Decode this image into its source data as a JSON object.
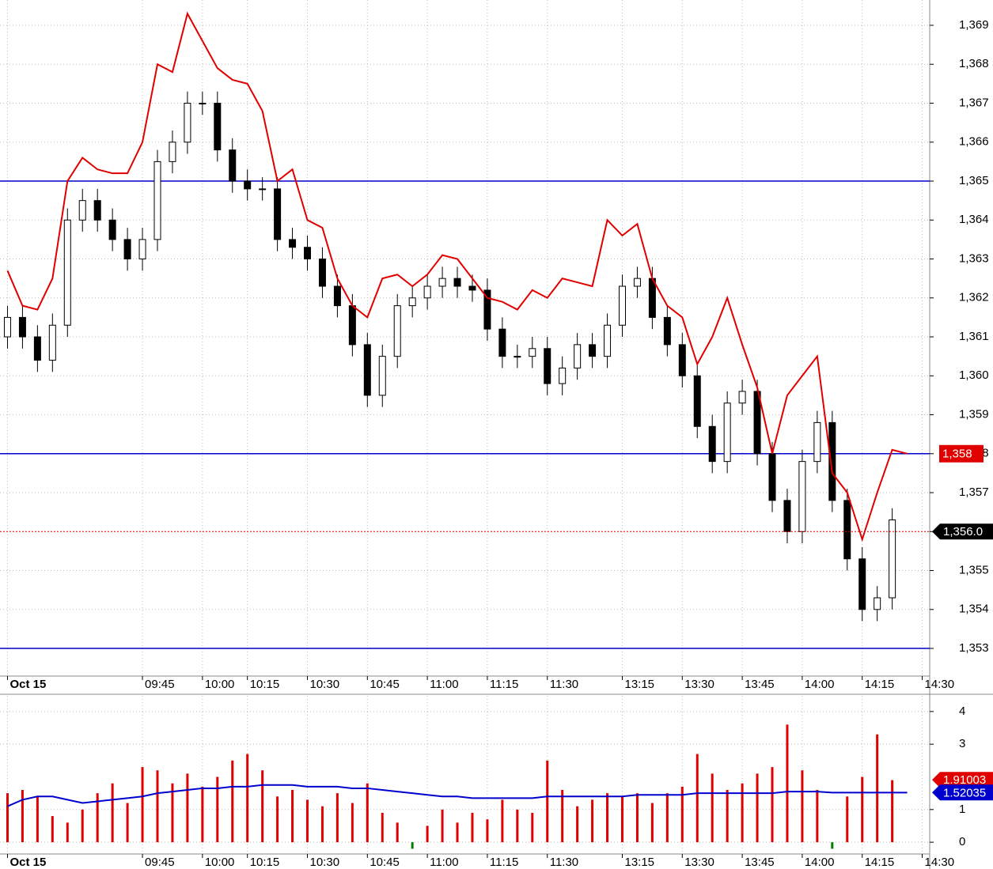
{
  "chart_data": [
    {
      "type": "candlestick",
      "categories": [
        "Oct 15",
        null,
        null,
        null,
        null,
        null,
        null,
        null,
        null,
        "09:45",
        null,
        null,
        null,
        "10:00",
        null,
        null,
        "10:15",
        null,
        null,
        null,
        "10:30",
        null,
        null,
        null,
        "10:45",
        null,
        null,
        null,
        "11:00",
        null,
        null,
        null,
        "11:15",
        null,
        null,
        null,
        "11:30",
        null,
        null,
        null,
        null,
        "13:15",
        null,
        null,
        null,
        "13:30",
        null,
        null,
        null,
        "13:45",
        null,
        null,
        null,
        "14:00",
        null,
        null,
        null,
        "14:15",
        null,
        null,
        null,
        "14:30"
      ],
      "open": [
        1361.0,
        1361.5,
        1361.0,
        1360.4,
        1361.3,
        1364.0,
        1364.5,
        1364.0,
        1363.5,
        1363.0,
        1363.5,
        1365.5,
        1366.0,
        1367.0,
        1367.0,
        1365.8,
        1365.0,
        1364.8,
        1364.8,
        1363.5,
        1363.3,
        1363.0,
        1362.3,
        1361.8,
        1360.8,
        1359.5,
        1360.5,
        1361.8,
        1362.0,
        1362.3,
        1362.5,
        1362.3,
        1362.2,
        1361.2,
        1360.5,
        1360.5,
        1360.7,
        1359.8,
        1360.2,
        1360.8,
        1360.5,
        1361.3,
        1362.3,
        1362.5,
        1361.5,
        1360.8,
        1360.0,
        1358.7,
        1357.8,
        1359.3,
        1359.6,
        1358.0,
        1356.8,
        1356.0,
        1357.8,
        1358.8,
        1356.8,
        1355.3,
        1354.0,
        1354.3,
        null,
        null
      ],
      "high": [
        1361.8,
        1361.8,
        1361.3,
        1361.6,
        1364.3,
        1364.8,
        1364.8,
        1364.3,
        1363.8,
        1363.8,
        1365.8,
        1366.3,
        1367.3,
        1367.3,
        1367.3,
        1366.1,
        1365.3,
        1365.1,
        1365.1,
        1363.8,
        1363.6,
        1363.3,
        1362.6,
        1362.1,
        1361.1,
        1360.8,
        1362.1,
        1362.3,
        1362.6,
        1362.8,
        1362.8,
        1362.6,
        1362.5,
        1361.5,
        1360.8,
        1361.0,
        1361.0,
        1360.5,
        1361.1,
        1361.1,
        1361.6,
        1362.6,
        1362.8,
        1362.8,
        1361.8,
        1361.1,
        1360.3,
        1359.0,
        1359.6,
        1359.9,
        1359.9,
        1358.3,
        1357.1,
        1358.1,
        1359.1,
        1359.1,
        1357.1,
        1355.6,
        1354.6,
        1356.6,
        null,
        null
      ],
      "low": [
        1360.7,
        1360.7,
        1360.1,
        1360.1,
        1361.0,
        1363.7,
        1363.7,
        1363.2,
        1362.7,
        1362.7,
        1363.2,
        1365.2,
        1365.7,
        1366.7,
        1365.5,
        1364.7,
        1364.5,
        1364.5,
        1363.2,
        1363.0,
        1362.7,
        1362.0,
        1361.5,
        1360.5,
        1359.2,
        1359.2,
        1360.2,
        1361.5,
        1361.7,
        1362.0,
        1362.0,
        1361.9,
        1360.9,
        1360.2,
        1360.2,
        1360.2,
        1359.5,
        1359.5,
        1359.9,
        1360.2,
        1360.2,
        1361.0,
        1362.0,
        1361.2,
        1360.5,
        1359.7,
        1358.4,
        1357.5,
        1357.5,
        1359.0,
        1357.7,
        1356.5,
        1355.7,
        1355.7,
        1357.5,
        1356.5,
        1355.0,
        1353.7,
        1353.7,
        1354.0,
        null,
        null
      ],
      "close": [
        1361.5,
        1361.0,
        1360.4,
        1361.3,
        1364.0,
        1364.5,
        1364.0,
        1363.5,
        1363.0,
        1363.5,
        1365.5,
        1366.0,
        1367.0,
        1367.0,
        1365.8,
        1365.0,
        1364.8,
        1364.8,
        1363.5,
        1363.3,
        1363.0,
        1362.3,
        1361.8,
        1360.8,
        1359.5,
        1360.5,
        1361.8,
        1362.0,
        1362.3,
        1362.5,
        1362.3,
        1362.2,
        1361.2,
        1360.5,
        1360.5,
        1360.7,
        1359.8,
        1360.2,
        1360.8,
        1360.5,
        1361.3,
        1362.3,
        1362.5,
        1361.5,
        1360.8,
        1360.0,
        1358.7,
        1357.8,
        1359.3,
        1359.6,
        1358.0,
        1356.8,
        1356.0,
        1357.8,
        1358.8,
        1356.8,
        1355.3,
        1354.0,
        1354.3,
        1356.3,
        null,
        null
      ],
      "line": {
        "color": "#e00000",
        "values": [
          1362.7,
          1361.8,
          1361.7,
          1362.5,
          1365.0,
          1365.6,
          1365.3,
          1365.2,
          1365.2,
          1366.0,
          1368.0,
          1367.8,
          1369.3,
          1368.6,
          1367.9,
          1367.6,
          1367.5,
          1366.8,
          1365.0,
          1365.3,
          1364.0,
          1363.8,
          1362.5,
          1361.8,
          1361.5,
          1362.5,
          1362.6,
          1362.3,
          1362.6,
          1363.1,
          1363.0,
          1362.5,
          1362.0,
          1361.9,
          1361.7,
          1362.2,
          1362.0,
          1362.5,
          1362.4,
          1362.3,
          1364.0,
          1363.6,
          1363.9,
          1362.5,
          1361.8,
          1361.5,
          1360.3,
          1361.0,
          1362.0,
          1360.8,
          1359.7,
          1358.0,
          1359.5,
          1360.0,
          1360.5,
          1357.5,
          1357.0,
          1355.8,
          1357.0,
          1358.1,
          1358.0,
          null
        ]
      },
      "hlines": {
        "color": "#0000cc",
        "values": [
          1365,
          1358,
          1353
        ]
      },
      "tags": [
        {
          "value": 1358,
          "label": "1,358",
          "color": "#e00000"
        },
        {
          "value": 1356,
          "label": "1,356.0",
          "color": "#000000"
        }
      ],
      "ylim": [
        1352.29,
        1369.65
      ],
      "yticks": [
        {
          "value": 1353,
          "label": "1,353"
        },
        {
          "value": 1354,
          "label": "1,354"
        },
        {
          "value": 1355,
          "label": "1,355"
        },
        {
          "value": 1356,
          "label": "1,356"
        },
        {
          "value": 1357,
          "label": "1,357"
        },
        {
          "value": 1358,
          "label": "1,358"
        },
        {
          "value": 1359,
          "label": "1,359"
        },
        {
          "value": 1360,
          "label": "1,360"
        },
        {
          "value": 1361,
          "label": "1,361"
        },
        {
          "value": 1362,
          "label": "1,362"
        },
        {
          "value": 1363,
          "label": "1,363"
        },
        {
          "value": 1364,
          "label": "1,364"
        },
        {
          "value": 1365,
          "label": "1,365"
        },
        {
          "value": 1366,
          "label": "1,366"
        },
        {
          "value": 1367,
          "label": "1,367"
        },
        {
          "value": 1368,
          "label": "1,368"
        },
        {
          "value": 1369,
          "label": "1,369"
        }
      ],
      "grid": true
    },
    {
      "type": "bar",
      "categories": [
        "Oct 15",
        null,
        null,
        null,
        null,
        null,
        null,
        null,
        null,
        "09:45",
        null,
        null,
        null,
        "10:00",
        null,
        null,
        "10:15",
        null,
        null,
        null,
        "10:30",
        null,
        null,
        null,
        "10:45",
        null,
        null,
        null,
        "11:00",
        null,
        null,
        null,
        "11:15",
        null,
        null,
        null,
        "11:30",
        null,
        null,
        null,
        null,
        "13:15",
        null,
        null,
        null,
        "13:30",
        null,
        null,
        null,
        "13:45",
        null,
        null,
        null,
        "14:00",
        null,
        null,
        null,
        "14:15",
        null,
        null,
        null,
        "14:30"
      ],
      "values": [
        1.5,
        1.6,
        1.4,
        0.8,
        0.6,
        1.0,
        1.5,
        1.8,
        1.2,
        2.3,
        2.2,
        1.8,
        2.1,
        1.7,
        2.0,
        2.5,
        2.7,
        2.2,
        1.4,
        1.6,
        1.3,
        1.1,
        1.5,
        1.2,
        1.8,
        0.9,
        0.6,
        -0.2,
        0.5,
        1.0,
        0.6,
        0.9,
        0.7,
        1.3,
        1.0,
        0.9,
        2.5,
        1.6,
        1.1,
        1.3,
        1.5,
        1.4,
        1.5,
        1.2,
        1.5,
        1.7,
        2.7,
        2.1,
        1.6,
        1.8,
        2.1,
        2.3,
        3.6,
        2.2,
        1.6,
        -0.2,
        1.4,
        2.0,
        3.3,
        1.9,
        null,
        null
      ],
      "color": "#e00000",
      "negative_color": "#008000",
      "line": {
        "color": "#0000cc",
        "values": [
          1.1,
          1.3,
          1.4,
          1.4,
          1.3,
          1.2,
          1.25,
          1.3,
          1.35,
          1.4,
          1.5,
          1.55,
          1.6,
          1.65,
          1.65,
          1.7,
          1.7,
          1.75,
          1.75,
          1.75,
          1.7,
          1.7,
          1.7,
          1.65,
          1.65,
          1.6,
          1.55,
          1.5,
          1.45,
          1.4,
          1.4,
          1.35,
          1.35,
          1.35,
          1.35,
          1.35,
          1.4,
          1.4,
          1.4,
          1.4,
          1.4,
          1.4,
          1.45,
          1.45,
          1.45,
          1.45,
          1.5,
          1.5,
          1.5,
          1.5,
          1.5,
          1.5,
          1.55,
          1.55,
          1.55,
          1.52,
          1.52,
          1.52,
          1.52,
          1.52,
          1.52,
          null
        ]
      },
      "tags": [
        {
          "value": 1.91003,
          "color": "#e00000"
        },
        {
          "value": 1.52035,
          "color": "#0000cc"
        }
      ],
      "ylim": [
        -0.36,
        4.48
      ],
      "yticks": [
        0,
        1,
        3,
        4
      ],
      "grid": true
    }
  ]
}
